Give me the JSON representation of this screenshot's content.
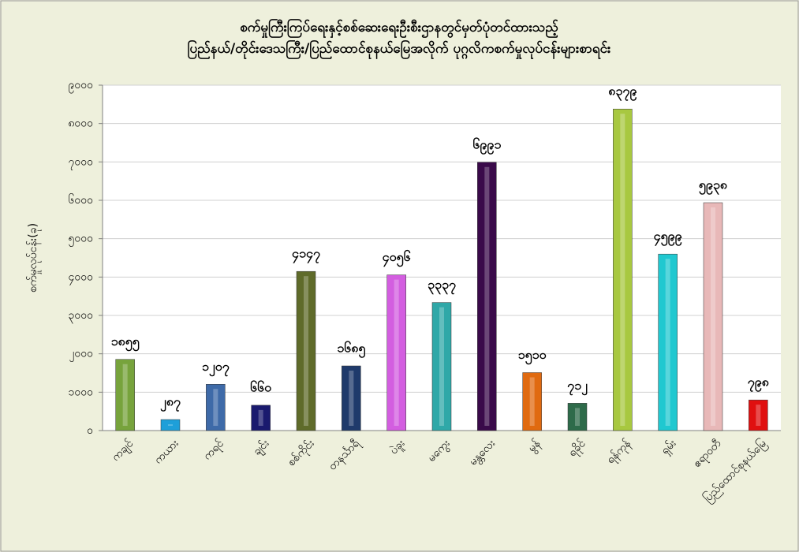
{
  "chart_data": {
    "type": "bar",
    "title": [
      "စက်မှုကြီးကြပ်ရေးနှင့်စစ်ဆေးရေးဦးစီးဌာနတွင်မှတ်ပုံတင်ထားသည့်",
      "ပြည်နယ်/တိုင်းဒေသကြီး/ပြည်ထောင်စုနယ်မြေအလိုက် ပုဂ္ဂလိကစက်မှုလုပ်ငန်းများစာရင်း"
    ],
    "y_label": "စက်မှုလုပ်ငန်း(ခု)",
    "categories": [
      "ကချင်",
      "ကယား",
      "ကရင်",
      "ချင်း",
      "စစ်ကိုင်း",
      "တနင်္သာရီ",
      "ပဲခူး",
      "မကွေး",
      "မန္တလေး",
      "မွန်",
      "ရခိုင်",
      "ရန်ကုန်",
      "ရှမ်း",
      "ဧရာဝတီ",
      "ပြည်ထောင်စုနယ်မြေ"
    ],
    "values": [
      1855,
      287,
      1207,
      660,
      4147,
      1685,
      4056,
      3337,
      6991,
      1510,
      712,
      8379,
      4599,
      5938,
      798
    ],
    "value_labels": [
      "၁၈၅၅",
      "၂၈၇",
      "၁၂၀၇",
      "၆၆၀",
      "၄၁၄၇",
      "၁၆၈၅",
      "၄၀၅၆",
      "၃၃၃၇",
      "၆၉၉၁",
      "၁၅၁၀",
      "၇၁၂",
      "၈၃၇၉",
      "၄၅၉၉",
      "၅၉၃၈",
      "၇၉၈"
    ],
    "colors": [
      "#77a33c",
      "#1e9fd9",
      "#3e6aa8",
      "#1a1a6e",
      "#5f6b2a",
      "#1f3a6b",
      "#d35ee0",
      "#2fa8a8",
      "#3a0a4a",
      "#e06a10",
      "#2e6b4a",
      "#a8c840",
      "#20c8d0",
      "#e8b8b8",
      "#e01010"
    ],
    "ylim": [
      0,
      9000
    ],
    "yticks": [
      {
        "value": 0,
        "label": "၀"
      },
      {
        "value": 1000,
        "label": "၁၀၀၀"
      },
      {
        "value": 2000,
        "label": "၂၀၀၀"
      },
      {
        "value": 3000,
        "label": "၃၀၀၀"
      },
      {
        "value": 4000,
        "label": "၄၀၀၀"
      },
      {
        "value": 5000,
        "label": "၅၀၀၀"
      },
      {
        "value": 6000,
        "label": "၆၀၀၀"
      },
      {
        "value": 7000,
        "label": "၇၀၀၀"
      },
      {
        "value": 8000,
        "label": "၈၀၀၀"
      },
      {
        "value": 9000,
        "label": "၉၀၀၀"
      }
    ],
    "grid": true
  }
}
